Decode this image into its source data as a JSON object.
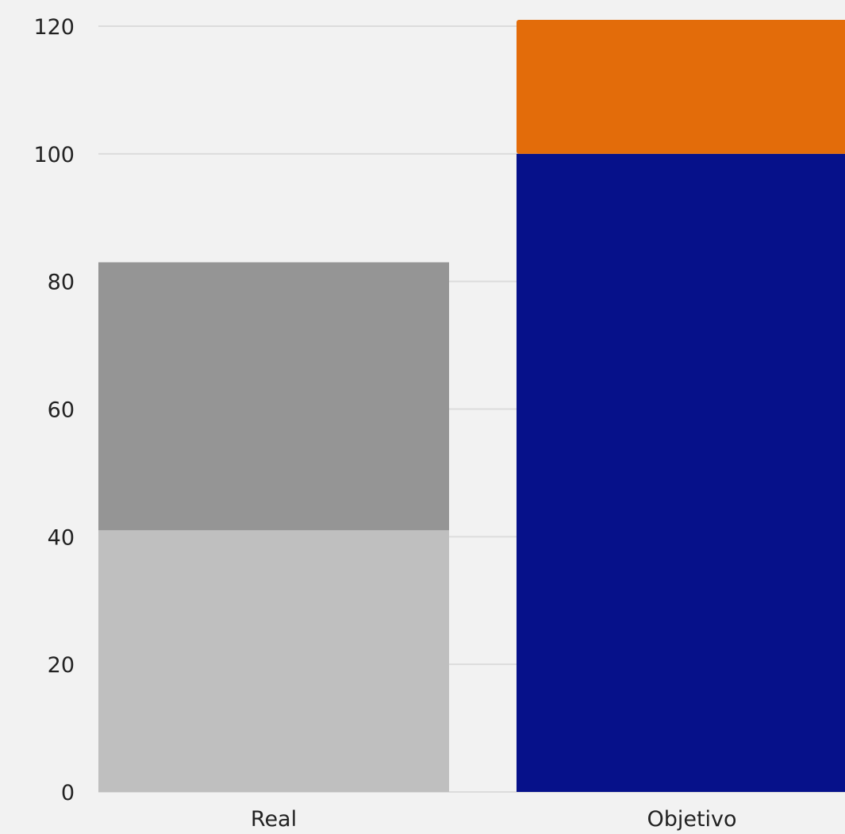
{
  "chart_data": {
    "type": "bar",
    "stacked": true,
    "title": "",
    "xlabel": "",
    "ylabel": "",
    "ylim": [
      0,
      120
    ],
    "yticks": [
      0,
      20,
      40,
      60,
      80,
      100,
      120
    ],
    "grid": true,
    "legend": "none",
    "categories": [
      "Real",
      "Objetivo"
    ],
    "bars": [
      {
        "category": "Real",
        "segments": [
          {
            "value": 41,
            "color": "#bfbfbf"
          },
          {
            "value": 42,
            "color": "#959595"
          }
        ]
      },
      {
        "category": "Objetivo",
        "segments": [
          {
            "value": 100,
            "color": "#06118a"
          },
          {
            "value": 21,
            "color": "#e36c0a"
          }
        ]
      }
    ]
  }
}
